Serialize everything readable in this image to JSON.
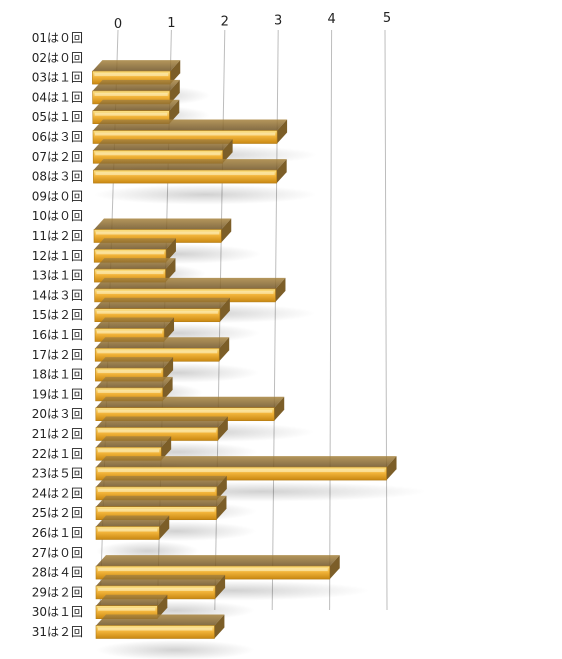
{
  "chart_data": {
    "type": "bar",
    "orientation": "horizontal",
    "style": "3d-perspective",
    "categories": [
      "01は０回",
      "02は０回",
      "03は１回",
      "04は１回",
      "05は１回",
      "06は３回",
      "07は２回",
      "08は３回",
      "09は０回",
      "10は０回",
      "11は２回",
      "12は１回",
      "13は１回",
      "14は３回",
      "15は２回",
      "16は１回",
      "17は２回",
      "18は１回",
      "19は１回",
      "20は３回",
      "21は２回",
      "22は１回",
      "23は５回",
      "24は２回",
      "25は２回",
      "26は１回",
      "27は０回",
      "28は４回",
      "29は２回",
      "30は１回",
      "31は２回"
    ],
    "values": [
      0,
      0,
      1,
      1,
      1,
      3,
      2,
      3,
      0,
      0,
      2,
      1,
      1,
      3,
      2,
      1,
      2,
      1,
      1,
      3,
      2,
      1,
      5,
      2,
      2,
      1,
      0,
      4,
      2,
      1,
      2
    ],
    "x_ticks": [
      "0",
      "1",
      "2",
      "3",
      "4",
      "5"
    ],
    "xlim": [
      0,
      5
    ],
    "title": "",
    "xlabel": "",
    "ylabel": "",
    "grid": true,
    "legend": "none",
    "colors": {
      "bar_light": "#fbe38a",
      "bar_mid": "#f2b43a",
      "bar_dark": "#c88712",
      "bar_side": "#8a6a30",
      "grid": "#bdbdbd",
      "text": "#222222"
    }
  }
}
